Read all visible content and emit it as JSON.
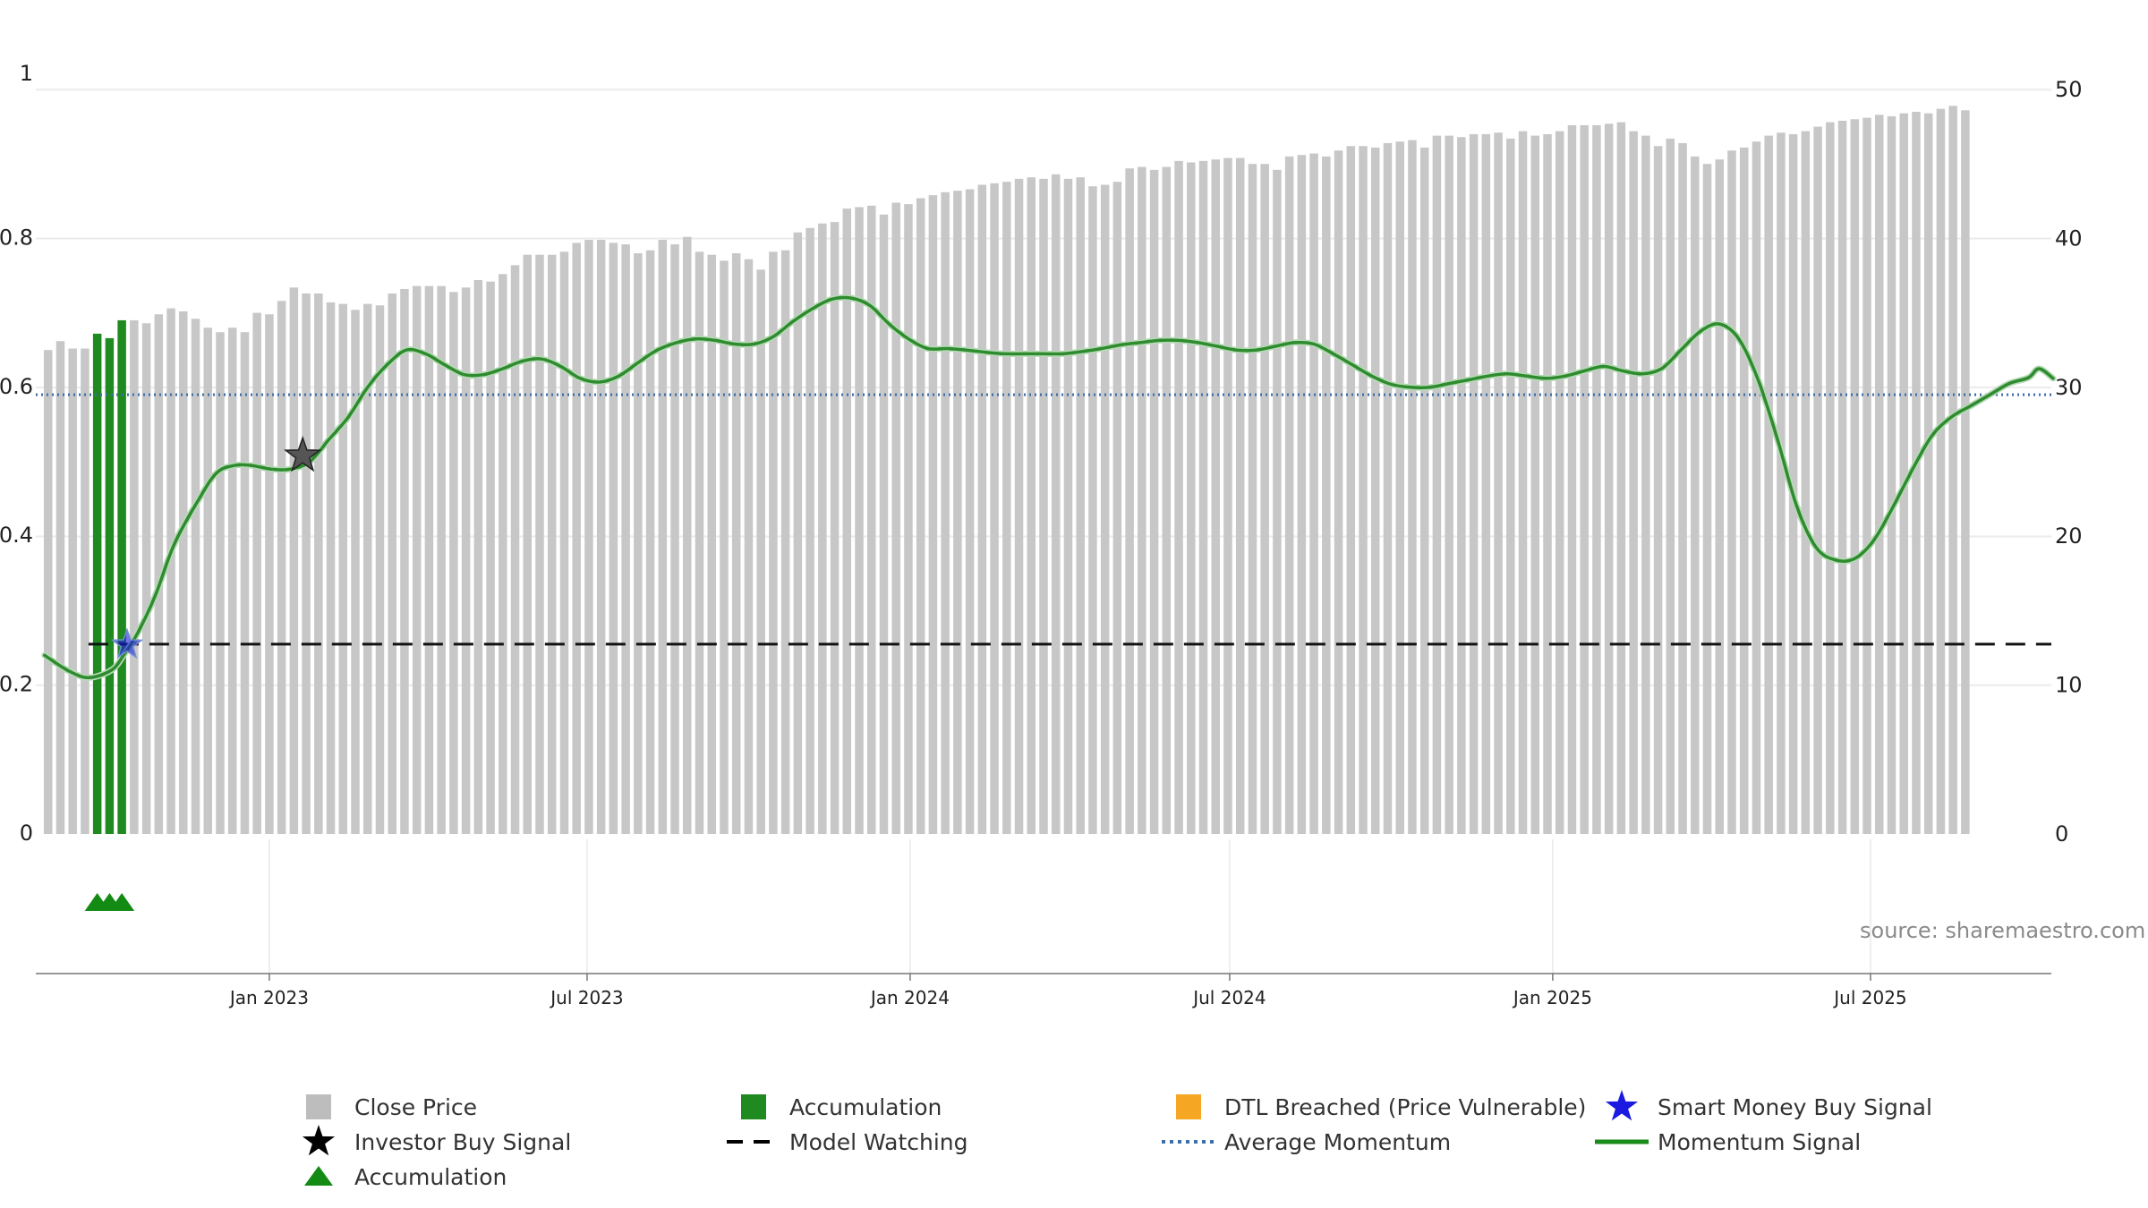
{
  "source_label": "source: sharemaestro.com",
  "colors": {
    "close_price": "#c7c7c7",
    "accumulation_bar": "#1f8a1f",
    "accumulation_marker": "#138a13",
    "dtl_breached": "#f5a623",
    "momentum": "#2e8b2e",
    "average_momentum": "#3d6fa8",
    "model_watching": "#111111",
    "smart_money": "#1a1ae0",
    "investor_buy": "#111111",
    "grid": "#e9e9e9"
  },
  "legend": [
    {
      "label": "Close Price",
      "icon": "square",
      "color": "#bdbdbd"
    },
    {
      "label": "Accumulation",
      "icon": "square",
      "color": "#1f8a1f"
    },
    {
      "label": "DTL Breached (Price Vulnerable)",
      "icon": "square",
      "color": "#f5a623"
    },
    {
      "label": "Smart Money Buy Signal",
      "icon": "star",
      "color": "#1a1ae0"
    },
    {
      "label": "Investor Buy Signal",
      "icon": "star",
      "color": "#000000"
    },
    {
      "label": "Model Watching",
      "icon": "dash",
      "color": "#000000"
    },
    {
      "label": "Average Momentum",
      "icon": "dot",
      "color": "#3d6fa8"
    },
    {
      "label": "Momentum Signal",
      "icon": "line",
      "color": "#1a8a1a"
    },
    {
      "label": "Accumulation",
      "icon": "triangle",
      "color": "#138a13"
    }
  ],
  "chart_data": {
    "type": "bar",
    "x_axis": {
      "type": "date",
      "range": [
        "2022-08-21",
        "2025-10-12"
      ],
      "ticks": [
        {
          "date": "2023-01-01",
          "label": "Jan 2023"
        },
        {
          "date": "2023-07-01",
          "label": "Jul 2023"
        },
        {
          "date": "2024-01-01",
          "label": "Jan 2024"
        },
        {
          "date": "2024-07-01",
          "label": "Jul 2024"
        },
        {
          "date": "2025-01-01",
          "label": "Jan 2025"
        },
        {
          "date": "2025-07-01",
          "label": "Jul 2025"
        }
      ]
    },
    "y_left": {
      "range": [
        0,
        1
      ],
      "ticks": [
        "0",
        "0.2",
        "0.4",
        "0.6",
        "0.8",
        "1"
      ]
    },
    "y_right": {
      "range": [
        0,
        50
      ],
      "ticks": [
        "0",
        "10",
        "20",
        "30",
        "40",
        "50"
      ]
    },
    "grid": true,
    "legend_position": "bottom",
    "series": [
      {
        "name": "Close Price",
        "type": "bar",
        "axis": "right",
        "frequency": "weekly",
        "start": "2022-08-28",
        "values": [
          32.5,
          33.1,
          32.6,
          32.6,
          33.0,
          33.5,
          33.1,
          34.5,
          34.3,
          34.9,
          35.3,
          35.1,
          34.6,
          34.0,
          33.7,
          34.0,
          33.7,
          35.0,
          34.9,
          35.8,
          36.7,
          36.3,
          36.3,
          35.7,
          35.6,
          35.2,
          35.6,
          35.5,
          36.3,
          36.6,
          36.8,
          36.8,
          36.8,
          36.4,
          36.7,
          37.2,
          37.1,
          37.6,
          38.2,
          38.9,
          38.9,
          38.9,
          39.1,
          39.7,
          39.9,
          39.9,
          39.7,
          39.6,
          39.0,
          39.2,
          39.9,
          39.6,
          40.1,
          39.1,
          38.9,
          38.5,
          39.0,
          38.6,
          37.9,
          39.1,
          39.2,
          40.4,
          40.7,
          41.0,
          41.1,
          42.0,
          42.1,
          42.2,
          41.6,
          42.4,
          42.3,
          42.7,
          42.9,
          43.1,
          43.2,
          43.3,
          43.6,
          43.7,
          43.8,
          44.0,
          44.1,
          44.0,
          44.3,
          44.0,
          44.1,
          43.5,
          43.6,
          43.8,
          44.7,
          44.8,
          44.6,
          44.8,
          45.2,
          45.1,
          45.2,
          45.3,
          45.4,
          45.4,
          45.0,
          45.0,
          44.6,
          45.5,
          45.6,
          45.7,
          45.5,
          45.9,
          46.2,
          46.2,
          46.1,
          46.4,
          46.5,
          46.6,
          46.1,
          46.9,
          46.9,
          46.8,
          47.0,
          47.0,
          47.1,
          46.7,
          47.2,
          46.9,
          47.0,
          47.2,
          47.6,
          47.6,
          47.6,
          47.7,
          47.8,
          47.2,
          46.9,
          46.2,
          46.7,
          46.4,
          45.5,
          45.0,
          45.3,
          45.9,
          46.1,
          46.5,
          46.9,
          47.1,
          47.0,
          47.2,
          47.5,
          47.8,
          47.9,
          48.0,
          48.1,
          48.3,
          48.2,
          48.4,
          48.5,
          48.4,
          48.7,
          48.9,
          48.6
        ]
      },
      {
        "name": "Accumulation",
        "type": "bar",
        "axis": "right",
        "weeks": [
          "2022-09-25",
          "2022-10-02",
          "2022-10-09"
        ],
        "values": [
          33.6,
          33.3,
          34.5
        ]
      },
      {
        "name": "Momentum Signal",
        "type": "line",
        "axis": "left",
        "points": [
          [
            "2022-08-26",
            0.24
          ],
          [
            "2022-09-08",
            0.22
          ],
          [
            "2022-09-20",
            0.21
          ],
          [
            "2022-10-03",
            0.22
          ],
          [
            "2022-10-10",
            0.24
          ],
          [
            "2022-10-18",
            0.27
          ],
          [
            "2022-10-28",
            0.32
          ],
          [
            "2022-11-08",
            0.39
          ],
          [
            "2022-11-22",
            0.45
          ],
          [
            "2022-12-02",
            0.485
          ],
          [
            "2022-12-12",
            0.495
          ],
          [
            "2022-12-22",
            0.495
          ],
          [
            "2023-01-02",
            0.49
          ],
          [
            "2023-01-13",
            0.49
          ],
          [
            "2023-01-24",
            0.5
          ],
          [
            "2023-02-04",
            0.53
          ],
          [
            "2023-02-15",
            0.56
          ],
          [
            "2023-02-26",
            0.6
          ],
          [
            "2023-03-09",
            0.63
          ],
          [
            "2023-03-20",
            0.65
          ],
          [
            "2023-03-31",
            0.645
          ],
          [
            "2023-04-11",
            0.63
          ],
          [
            "2023-04-22",
            0.617
          ],
          [
            "2023-05-03",
            0.617
          ],
          [
            "2023-05-14",
            0.625
          ],
          [
            "2023-05-25",
            0.635
          ],
          [
            "2023-06-05",
            0.638
          ],
          [
            "2023-06-16",
            0.628
          ],
          [
            "2023-06-27",
            0.612
          ],
          [
            "2023-07-08",
            0.607
          ],
          [
            "2023-07-19",
            0.615
          ],
          [
            "2023-07-30",
            0.633
          ],
          [
            "2023-08-10",
            0.65
          ],
          [
            "2023-08-21",
            0.66
          ],
          [
            "2023-09-01",
            0.665
          ],
          [
            "2023-09-12",
            0.663
          ],
          [
            "2023-09-23",
            0.658
          ],
          [
            "2023-10-04",
            0.658
          ],
          [
            "2023-10-15",
            0.668
          ],
          [
            "2023-10-26",
            0.688
          ],
          [
            "2023-11-06",
            0.705
          ],
          [
            "2023-11-17",
            0.718
          ],
          [
            "2023-11-28",
            0.72
          ],
          [
            "2023-12-09",
            0.71
          ],
          [
            "2023-12-20",
            0.685
          ],
          [
            "2023-12-31",
            0.665
          ],
          [
            "2024-01-11",
            0.652
          ],
          [
            "2024-01-22",
            0.652
          ],
          [
            "2024-02-02",
            0.65
          ],
          [
            "2024-02-13",
            0.647
          ],
          [
            "2024-02-24",
            0.645
          ],
          [
            "2024-03-06",
            0.645
          ],
          [
            "2024-03-17",
            0.645
          ],
          [
            "2024-03-28",
            0.645
          ],
          [
            "2024-04-08",
            0.648
          ],
          [
            "2024-04-19",
            0.652
          ],
          [
            "2024-04-30",
            0.657
          ],
          [
            "2024-05-11",
            0.66
          ],
          [
            "2024-05-22",
            0.663
          ],
          [
            "2024-06-02",
            0.663
          ],
          [
            "2024-06-13",
            0.66
          ],
          [
            "2024-06-24",
            0.655
          ],
          [
            "2024-07-05",
            0.65
          ],
          [
            "2024-07-16",
            0.65
          ],
          [
            "2024-07-27",
            0.655
          ],
          [
            "2024-08-07",
            0.66
          ],
          [
            "2024-08-18",
            0.658
          ],
          [
            "2024-08-29",
            0.645
          ],
          [
            "2024-09-09",
            0.63
          ],
          [
            "2024-09-20",
            0.615
          ],
          [
            "2024-10-01",
            0.604
          ],
          [
            "2024-10-12",
            0.6
          ],
          [
            "2024-10-23",
            0.6
          ],
          [
            "2024-11-03",
            0.605
          ],
          [
            "2024-11-14",
            0.61
          ],
          [
            "2024-11-25",
            0.615
          ],
          [
            "2024-12-06",
            0.618
          ],
          [
            "2024-12-17",
            0.615
          ],
          [
            "2024-12-28",
            0.612
          ],
          [
            "2025-01-08",
            0.615
          ],
          [
            "2025-01-19",
            0.622
          ],
          [
            "2025-01-30",
            0.628
          ],
          [
            "2025-02-10",
            0.622
          ],
          [
            "2025-02-21",
            0.618
          ],
          [
            "2025-03-04",
            0.625
          ],
          [
            "2025-03-15",
            0.65
          ],
          [
            "2025-03-26",
            0.675
          ],
          [
            "2025-04-06",
            0.685
          ],
          [
            "2025-04-17",
            0.665
          ],
          [
            "2025-04-28",
            0.61
          ],
          [
            "2025-05-09",
            0.53
          ],
          [
            "2025-05-20",
            0.44
          ],
          [
            "2025-05-31",
            0.385
          ],
          [
            "2025-06-11",
            0.368
          ],
          [
            "2025-06-22",
            0.37
          ],
          [
            "2025-07-03",
            0.395
          ],
          [
            "2025-07-14",
            0.44
          ],
          [
            "2025-07-25",
            0.49
          ],
          [
            "2025-08-05",
            0.535
          ],
          [
            "2025-08-16",
            0.56
          ],
          [
            "2025-08-27",
            0.575
          ],
          [
            "2025-09-07",
            0.59
          ],
          [
            "2025-09-18",
            0.605
          ],
          [
            "2025-09-29",
            0.613
          ],
          [
            "2025-10-05",
            0.625
          ],
          [
            "2025-10-13",
            0.612
          ]
        ]
      },
      {
        "name": "Average Momentum",
        "type": "line",
        "style": "dotted",
        "axis": "left",
        "value": 0.59
      },
      {
        "name": "Model Watching",
        "type": "line",
        "style": "dashed",
        "axis": "left",
        "from": "2022-09-20",
        "to": "2025-10-12",
        "value": 0.255
      },
      {
        "name": "Smart Money Buy Signal",
        "type": "marker",
        "marker": "star",
        "axis": "left",
        "points": [
          [
            "2022-10-12",
            0.254
          ]
        ]
      },
      {
        "name": "Investor Buy Signal",
        "type": "marker",
        "marker": "star",
        "axis": "left",
        "points": [
          [
            "2023-01-20",
            0.508
          ]
        ]
      },
      {
        "name": "Accumulation",
        "type": "marker",
        "marker": "triangle",
        "axis": "none",
        "weeks": [
          "2022-09-25",
          "2022-10-02",
          "2022-10-09"
        ]
      }
    ]
  }
}
